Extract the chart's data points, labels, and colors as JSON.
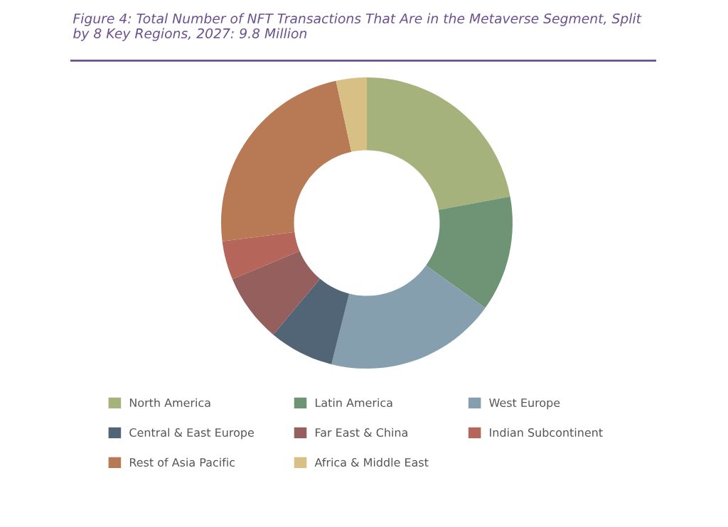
{
  "chart_data": {
    "type": "donut",
    "title": "Figure 4: Total Number of NFT Transactions That Are in the Metaverse Segment, Split by 8 Key Regions, 2027: 9.8 Million",
    "categories": [
      "North America",
      "Latin America",
      "West Europe",
      "Central & East Europe",
      "Far East & China",
      "Indian Subcontinent",
      "Rest of Asia Pacific",
      "Africa & Middle East"
    ],
    "values": [
      22.1,
      12.8,
      19.0,
      7.2,
      7.6,
      4.3,
      23.6,
      3.4
    ],
    "colors": [
      "#a5b27b",
      "#6e9475",
      "#869fae",
      "#526577",
      "#955f5e",
      "#b5655a",
      "#b87a55",
      "#d8bf83"
    ],
    "legend": "bottom"
  }
}
